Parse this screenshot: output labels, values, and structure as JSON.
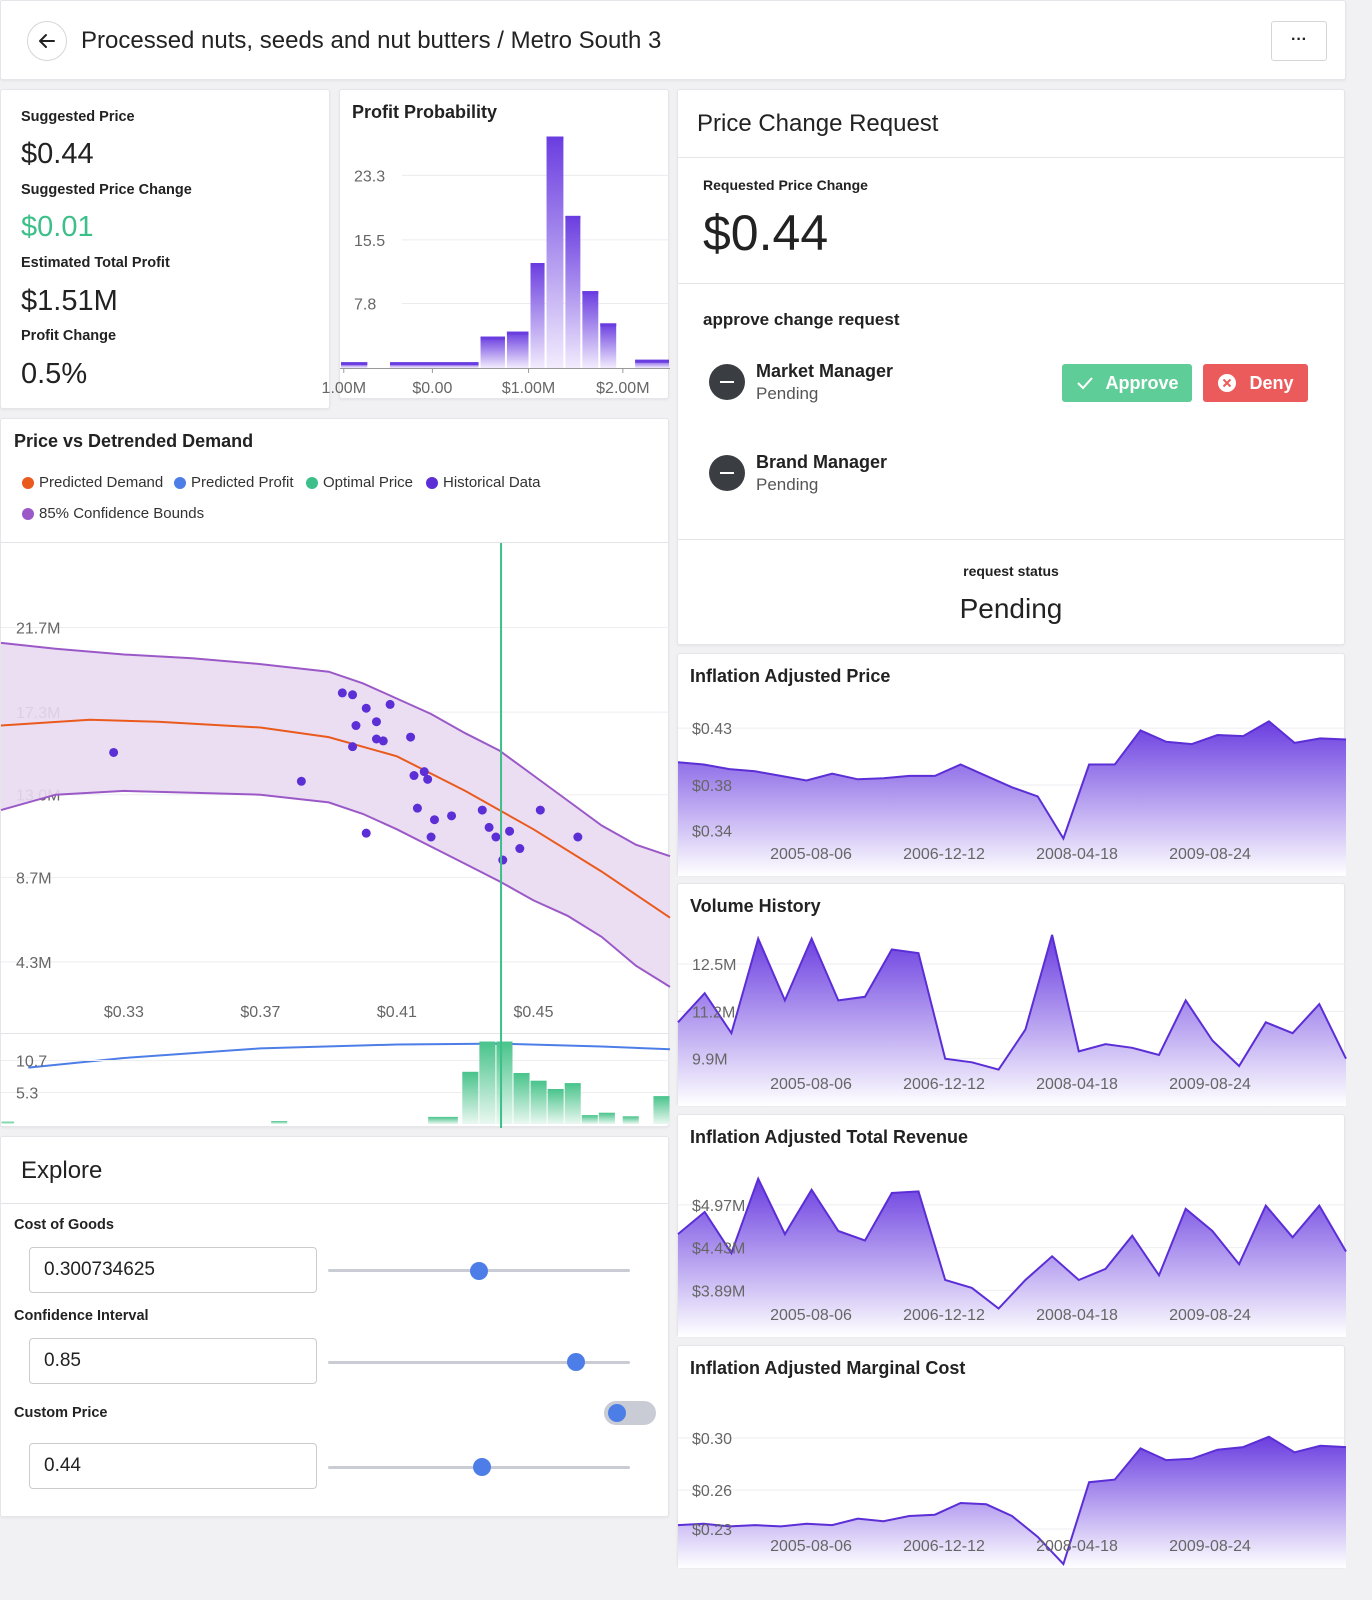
{
  "header": {
    "title": "Processed nuts, seeds and nut butters / Metro South 3",
    "more_label": "···"
  },
  "kpis": [
    {
      "label": "Suggested Price",
      "value": "$0.44"
    },
    {
      "label": "Suggested Price Change",
      "value": "$0.01",
      "value_color": "#3dbf8a"
    },
    {
      "label": "Estimated Total Profit",
      "value": "$1.51M"
    },
    {
      "label": "Profit Change",
      "value": "0.5%"
    }
  ],
  "profit_probability": {
    "title": "Profit Probability",
    "chart_data": {
      "type": "bar",
      "y_ticks": [
        "23.3",
        "15.5",
        "7.8"
      ],
      "x_ticks": [
        "1.00M",
        "$0.00",
        "$1.00M",
        "$2.00M"
      ],
      "bins_x": [
        -1.0,
        -0.7,
        -0.48,
        0.48,
        0.76,
        1.01,
        1.18,
        1.38,
        1.56,
        1.75,
        1.94,
        2.12,
        2.5
      ],
      "values": [
        0.7,
        0.0,
        0.7,
        3.8,
        4.4,
        12.7,
        28.0,
        18.4,
        9.3,
        5.4,
        0.0,
        1.0
      ],
      "ylim": [
        0,
        30
      ]
    }
  },
  "pvd": {
    "title": "Price vs Detrended Demand",
    "legend": [
      {
        "label": "Predicted Demand",
        "color": "#ea5a1d"
      },
      {
        "label": "Predicted Profit",
        "color": "#4d7ee8"
      },
      {
        "label": "Optimal Price",
        "color": "#3dbf8a"
      },
      {
        "label": "Historical Data",
        "color": "#5b2ed6"
      },
      {
        "label": "85% Confidence Bounds",
        "color": "#9b59c8"
      }
    ],
    "chart_data": {
      "type": "scatter",
      "y_ticks": [
        {
          "label": "21.7M",
          "v": 21.7
        },
        {
          "label": "17.3M",
          "v": 17.3
        },
        {
          "label": "13.0M",
          "v": 13.0
        },
        {
          "label": "8.7M",
          "v": 8.7
        },
        {
          "label": "4.3M",
          "v": 4.3
        }
      ],
      "x_ticks": [
        {
          "label": "$0.33",
          "v": 0.33
        },
        {
          "label": "$0.37",
          "v": 0.37
        },
        {
          "label": "$0.41",
          "v": 0.41
        },
        {
          "label": "$0.45",
          "v": 0.45
        }
      ],
      "xlim": [
        0.294,
        0.49
      ],
      "ylim": [
        0.6,
        26.1
      ],
      "optimal_price": 0.4405,
      "predicted_demand": [
        [
          0.294,
          16.6
        ],
        [
          0.32,
          16.9
        ],
        [
          0.34,
          16.8
        ],
        [
          0.37,
          16.5
        ],
        [
          0.39,
          16.0
        ],
        [
          0.41,
          15.0
        ],
        [
          0.43,
          13.2
        ],
        [
          0.45,
          11.2
        ],
        [
          0.47,
          9.0
        ],
        [
          0.49,
          6.6
        ]
      ],
      "upper_bound": [
        [
          0.294,
          20.9
        ],
        [
          0.31,
          20.6
        ],
        [
          0.33,
          20.3
        ],
        [
          0.35,
          20.1
        ],
        [
          0.37,
          19.8
        ],
        [
          0.39,
          19.4
        ],
        [
          0.4,
          18.8
        ],
        [
          0.41,
          18.0
        ],
        [
          0.42,
          17.2
        ],
        [
          0.43,
          16.2
        ],
        [
          0.44,
          15.3
        ],
        [
          0.45,
          14.0
        ],
        [
          0.46,
          12.7
        ],
        [
          0.47,
          11.4
        ],
        [
          0.48,
          10.4
        ],
        [
          0.49,
          9.8
        ]
      ],
      "lower_bound": [
        [
          0.294,
          12.2
        ],
        [
          0.31,
          13.0
        ],
        [
          0.33,
          13.2
        ],
        [
          0.35,
          13.1
        ],
        [
          0.37,
          13.0
        ],
        [
          0.39,
          12.6
        ],
        [
          0.4,
          12.0
        ],
        [
          0.41,
          11.2
        ],
        [
          0.42,
          10.3
        ],
        [
          0.43,
          9.4
        ],
        [
          0.44,
          8.5
        ],
        [
          0.45,
          7.5
        ],
        [
          0.46,
          6.7
        ],
        [
          0.47,
          5.6
        ],
        [
          0.48,
          4.1
        ],
        [
          0.49,
          3.0
        ]
      ],
      "historical": [
        [
          0.327,
          15.2
        ],
        [
          0.382,
          13.7
        ],
        [
          0.394,
          18.3
        ],
        [
          0.397,
          18.2
        ],
        [
          0.401,
          17.5
        ],
        [
          0.398,
          16.6
        ],
        [
          0.397,
          15.5
        ],
        [
          0.404,
          16.8
        ],
        [
          0.404,
          15.9
        ],
        [
          0.406,
          15.8
        ],
        [
          0.408,
          17.7
        ],
        [
          0.415,
          14.0
        ],
        [
          0.418,
          14.2
        ],
        [
          0.414,
          16.0
        ],
        [
          0.419,
          13.8
        ],
        [
          0.416,
          12.3
        ],
        [
          0.421,
          11.7
        ],
        [
          0.42,
          10.8
        ],
        [
          0.426,
          11.9
        ],
        [
          0.435,
          12.2
        ],
        [
          0.437,
          11.3
        ],
        [
          0.439,
          10.8
        ],
        [
          0.443,
          11.1
        ],
        [
          0.441,
          9.6
        ],
        [
          0.446,
          10.2
        ],
        [
          0.452,
          12.2
        ],
        [
          0.463,
          10.8
        ],
        [
          0.401,
          11.0
        ]
      ],
      "predicted_profit": [
        [
          0.302,
          -1.2
        ],
        [
          0.33,
          -0.7
        ],
        [
          0.37,
          -0.2
        ],
        [
          0.41,
          0.0
        ],
        [
          0.44,
          0.05
        ],
        [
          0.47,
          -0.1
        ],
        [
          0.49,
          -0.25
        ]
      ],
      "histogram_ticks": [
        "10.7",
        "5.3"
      ],
      "histogram": [
        {
          "x0": 0.294,
          "x1": 0.298,
          "v": 0.4
        },
        {
          "x0": 0.373,
          "x1": 0.378,
          "v": 0.5
        },
        {
          "x0": 0.419,
          "x1": 0.428,
          "v": 1.2
        },
        {
          "x0": 0.429,
          "x1": 0.434,
          "v": 8.8
        },
        {
          "x0": 0.434,
          "x1": 0.439,
          "v": 13.9
        },
        {
          "x0": 0.439,
          "x1": 0.444,
          "v": 13.9
        },
        {
          "x0": 0.444,
          "x1": 0.449,
          "v": 8.6
        },
        {
          "x0": 0.449,
          "x1": 0.454,
          "v": 7.3
        },
        {
          "x0": 0.454,
          "x1": 0.459,
          "v": 5.9
        },
        {
          "x0": 0.459,
          "x1": 0.464,
          "v": 6.9
        },
        {
          "x0": 0.464,
          "x1": 0.469,
          "v": 1.5
        },
        {
          "x0": 0.469,
          "x1": 0.474,
          "v": 1.9
        },
        {
          "x0": 0.476,
          "x1": 0.481,
          "v": 1.3
        },
        {
          "x0": 0.485,
          "x1": 0.49,
          "v": 4.7
        }
      ],
      "hist_ylim": [
        0,
        15
      ]
    }
  },
  "explore": {
    "title": "Explore",
    "cost_label": "Cost of Goods",
    "cost_value": "0.300734625",
    "cost_fraction": 0.5,
    "ci_label": "Confidence Interval",
    "ci_value": "0.85",
    "ci_fraction": 0.82,
    "custom_label": "Custom Price",
    "custom_value": "0.44",
    "custom_fraction": 0.51
  },
  "pcr": {
    "title": "Price Change Request",
    "requested_label": "Requested Price Change",
    "requested_value": "$0.44",
    "approve_title": "approve change request",
    "approvers": [
      {
        "role": "Market Manager",
        "status": "Pending"
      },
      {
        "role": "Brand Manager",
        "status": "Pending"
      }
    ],
    "approve_label": "Approve",
    "deny_label": "Deny",
    "status_label": "request status",
    "status_value": "Pending"
  },
  "series_charts": [
    {
      "title": "Inflation Adjusted Price",
      "y_ticks": [
        {
          "label": "$0.43",
          "v": 0.43
        },
        {
          "label": "$0.38",
          "v": 0.38
        },
        {
          "label": "$0.34",
          "v": 0.34
        }
      ],
      "ylim": [
        0.3,
        0.46
      ],
      "x_ticks": [
        "2005-08-06",
        "2006-12-12",
        "2008-04-18",
        "2009-08-24"
      ],
      "values": [
        0.4,
        0.398,
        0.394,
        0.392,
        0.388,
        0.384,
        0.39,
        0.385,
        0.386,
        0.388,
        0.388,
        0.398,
        0.388,
        0.378,
        0.37,
        0.333,
        0.398,
        0.398,
        0.428,
        0.418,
        0.416,
        0.424,
        0.423,
        0.436,
        0.417,
        0.421,
        0.42
      ]
    },
    {
      "title": "Volume History",
      "y_ticks": [
        {
          "label": "12.5M",
          "v": 12.5
        },
        {
          "label": "11.2M",
          "v": 11.2
        },
        {
          "label": "9.9M",
          "v": 9.9
        }
      ],
      "ylim": [
        8.6,
        13.6
      ],
      "x_ticks": [
        "2005-08-06",
        "2006-12-12",
        "2008-04-18",
        "2009-08-24"
      ],
      "values": [
        10.9,
        11.7,
        10.6,
        13.2,
        11.5,
        13.2,
        11.5,
        11.6,
        12.9,
        12.8,
        9.9,
        9.8,
        9.6,
        10.7,
        13.3,
        10.1,
        10.3,
        10.2,
        10.0,
        11.5,
        10.4,
        9.7,
        10.9,
        10.6,
        11.4,
        9.9
      ]
    },
    {
      "title": "Inflation Adjusted Total Revenue",
      "y_ticks": [
        {
          "label": "$4.97M",
          "v": 4.97
        },
        {
          "label": "$4.43M",
          "v": 4.43
        },
        {
          "label": "$3.89M",
          "v": 3.89
        }
      ],
      "ylim": [
        3.3,
        5.6
      ],
      "x_ticks": [
        "2005-08-06",
        "2006-12-12",
        "2008-04-18",
        "2009-08-24"
      ],
      "values": [
        4.6,
        4.88,
        4.36,
        5.3,
        4.6,
        5.16,
        4.64,
        4.52,
        5.12,
        5.14,
        4.02,
        3.92,
        3.66,
        4.02,
        4.32,
        4.02,
        4.16,
        4.58,
        4.08,
        4.92,
        4.64,
        4.22,
        4.96,
        4.56,
        4.96,
        4.38
      ]
    },
    {
      "title": "Inflation Adjusted Marginal Cost",
      "y_ticks": [
        {
          "label": "$0.30",
          "v": 0.3
        },
        {
          "label": "$0.26",
          "v": 0.26
        },
        {
          "label": "$0.23",
          "v": 0.23
        }
      ],
      "ylim": [
        0.2,
        0.34
      ],
      "x_ticks": [
        "2005-08-06",
        "2006-12-12",
        "2008-04-18",
        "2009-08-24"
      ],
      "values": [
        0.233,
        0.234,
        0.232,
        0.233,
        0.232,
        0.234,
        0.233,
        0.238,
        0.236,
        0.24,
        0.241,
        0.25,
        0.249,
        0.24,
        0.224,
        0.203,
        0.266,
        0.268,
        0.292,
        0.283,
        0.284,
        0.291,
        0.293,
        0.301,
        0.289,
        0.294,
        0.293
      ]
    }
  ]
}
